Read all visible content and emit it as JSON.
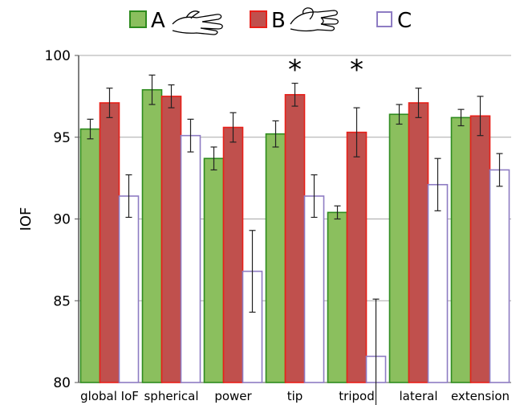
{
  "chart_data": {
    "type": "bar",
    "ylabel": "IOF",
    "ylim": [
      80,
      100
    ],
    "yticks": [
      80,
      85,
      90,
      95,
      100
    ],
    "grid": true,
    "legend_position": "top",
    "categories": [
      "global IoF",
      "spherical",
      "power",
      "tip",
      "tripod",
      "lateral",
      "extension"
    ],
    "series": [
      {
        "name": "A",
        "color": "#8bbf5e",
        "edge": "#2e8b1e",
        "values": [
          95.5,
          97.9,
          93.7,
          95.2,
          90.4,
          96.4,
          96.2
        ],
        "errors": [
          0.6,
          0.9,
          0.7,
          0.8,
          0.4,
          0.6,
          0.5
        ]
      },
      {
        "name": "B",
        "color": "#c0504d",
        "edge": "#e8201a",
        "values": [
          97.1,
          97.5,
          95.6,
          97.6,
          95.3,
          97.1,
          96.3
        ],
        "errors": [
          0.9,
          0.7,
          0.9,
          0.7,
          1.5,
          0.9,
          1.2
        ]
      },
      {
        "name": "C",
        "color": "#ffffff",
        "edge": "#8e7cc3",
        "values": [
          91.4,
          95.1,
          86.8,
          91.4,
          81.6,
          92.1,
          93.0
        ],
        "errors": [
          1.3,
          1.0,
          2.5,
          1.3,
          3.5,
          1.6,
          1.0
        ]
      }
    ],
    "annotations": [
      {
        "category": "tip",
        "text": "*"
      },
      {
        "category": "tripod",
        "text": "*"
      }
    ]
  },
  "legend": {
    "items": [
      {
        "label": "A",
        "icon": "open-hand-icon"
      },
      {
        "label": "B",
        "icon": "grasping-hand-icon"
      },
      {
        "label": "C"
      }
    ]
  }
}
